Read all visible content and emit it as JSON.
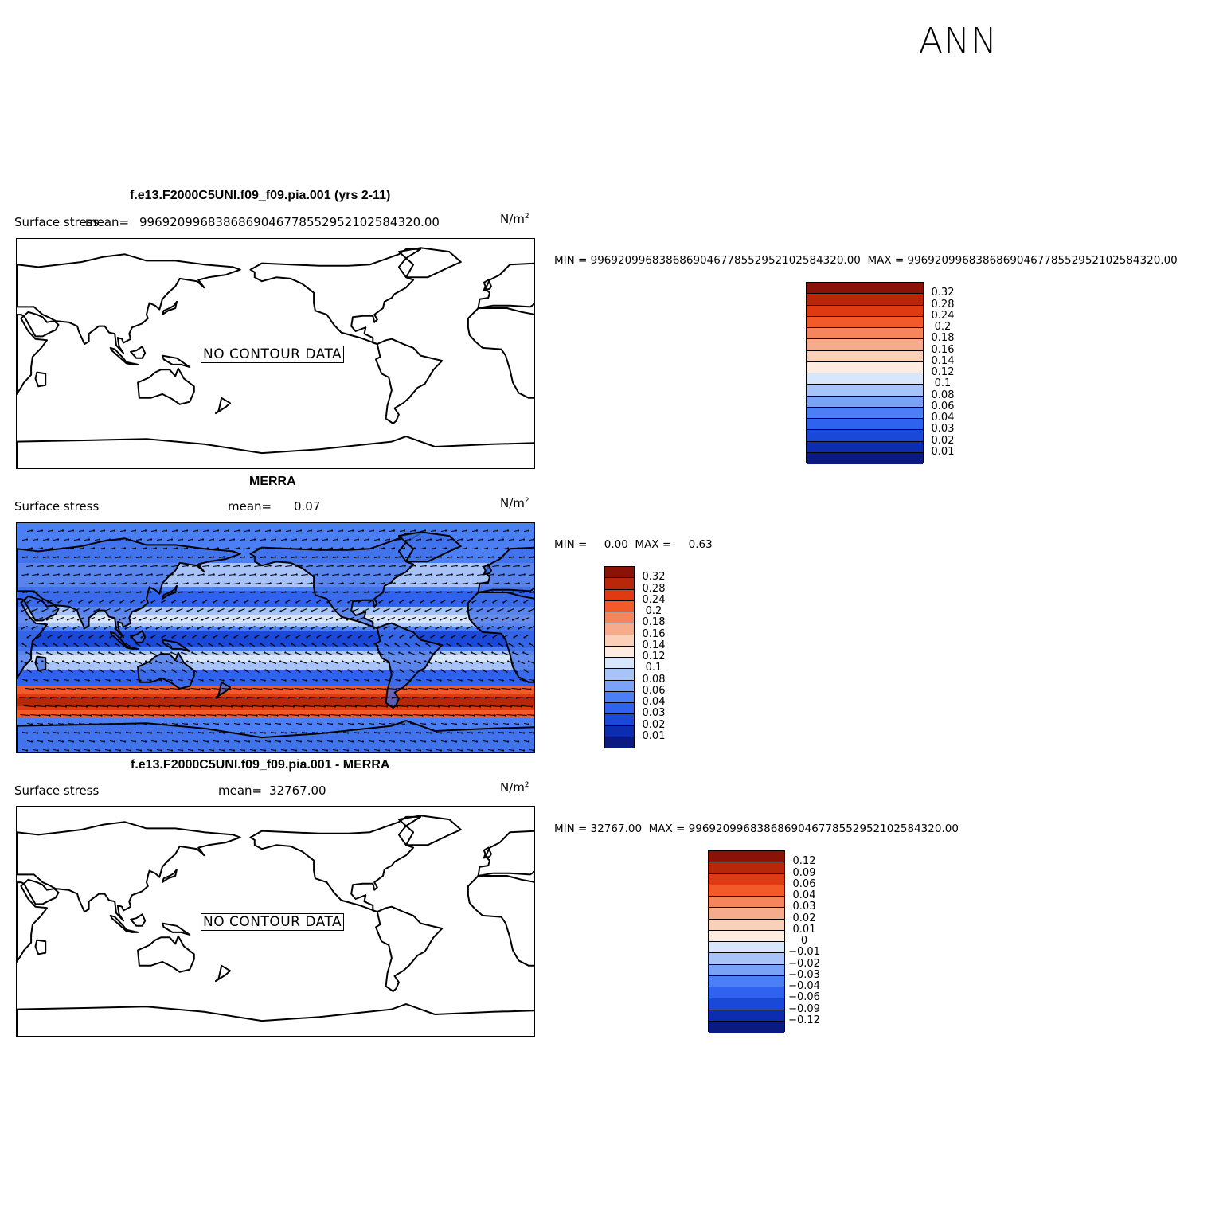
{
  "season": "ANN",
  "panels": [
    {
      "title": "f.e13.F2000C5UNI.f09_f09.pia.001 (yrs 2-11)",
      "variable": "Surface stress",
      "mean_label": "mean=",
      "mean_value": "996920996838686904677855295210258432​0.00",
      "units": "N/m",
      "units_exp": "2",
      "message": "NO CONTOUR DATA",
      "minmax": "MIN = 996920996838686904677855295210258432​0.00  MAX = 996920996838686904677855295210258432​0.00",
      "legend": [
        "0.32",
        "0.28",
        "0.24",
        "0.2",
        "0.18",
        "0.16",
        "0.14",
        "0.12",
        "0.1",
        "0.08",
        "0.06",
        "0.04",
        "0.03",
        "0.02",
        "0.01"
      ]
    },
    {
      "title": "MERRA",
      "variable": "Surface stress",
      "mean_label": "mean=",
      "mean_value": "0.07",
      "units": "N/m",
      "units_exp": "2",
      "minmax": "MIN =     0.00  MAX =     0.63",
      "legend": [
        "0.32",
        "0.28",
        "0.24",
        "0.2",
        "0.18",
        "0.16",
        "0.14",
        "0.12",
        "0.1",
        "0.08",
        "0.06",
        "0.04",
        "0.03",
        "0.02",
        "0.01"
      ]
    },
    {
      "title": "f.e13.F2000C5UNI.f09_f09.pia.001 - MERRA",
      "variable": "Surface stress",
      "mean_label": "mean=",
      "mean_value": "32767.00",
      "units": "N/m",
      "units_exp": "2",
      "message": "NO CONTOUR DATA",
      "minmax": "MIN = 32767.00  MAX = 996920996838686904677855295210258432​0.00",
      "legend": [
        "0.12",
        "0.09",
        "0.06",
        "0.04",
        "0.03",
        "0.02",
        "0.01",
        "0",
        "−0.01",
        "−0.02",
        "−0.03",
        "−0.04",
        "−0.06",
        "−0.09",
        "−0.12"
      ]
    }
  ],
  "colormap": [
    "#0a1a80",
    "#0c2db0",
    "#1a48d8",
    "#2f62ee",
    "#4a7ff5",
    "#7aa2f6",
    "#a7c3f8",
    "#d8e6fb",
    "#fdecdf",
    "#fbd0b8",
    "#f6ac8c",
    "#f4855c",
    "#f35a2a",
    "#e03a12",
    "#b8270a",
    "#8a1206"
  ]
}
